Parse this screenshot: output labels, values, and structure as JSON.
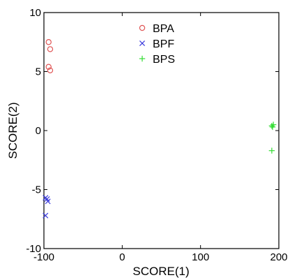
{
  "chart_data": {
    "type": "scatter",
    "xlabel": "SCORE(1)",
    "ylabel": "SCORE(2)",
    "xlim": [
      -100,
      200
    ],
    "ylim": [
      -10,
      10
    ],
    "xticks": [
      -100,
      0,
      100,
      200
    ],
    "yticks": [
      -10,
      -5,
      0,
      5,
      10
    ],
    "xtick_labels": [
      "-100",
      "0",
      "100",
      "200"
    ],
    "ytick_labels": [
      "-10",
      "-5",
      "0",
      "5",
      "10"
    ],
    "grid": false,
    "legend_position": "top-center",
    "series": [
      {
        "name": "BPA",
        "marker": "circle",
        "color": "#e05555",
        "points": [
          {
            "x": -94,
            "y": 7.5
          },
          {
            "x": -92,
            "y": 6.9
          },
          {
            "x": -94,
            "y": 5.4
          },
          {
            "x": -92,
            "y": 5.1
          }
        ]
      },
      {
        "name": "BPF",
        "marker": "x",
        "color": "#3b3bdc",
        "points": [
          {
            "x": -98,
            "y": -5.7
          },
          {
            "x": -96,
            "y": -5.8
          },
          {
            "x": -95,
            "y": -6.0
          },
          {
            "x": -98,
            "y": -7.2
          }
        ]
      },
      {
        "name": "BPS",
        "marker": "plus",
        "color": "#33dd33",
        "points": [
          {
            "x": 191,
            "y": 0.4
          },
          {
            "x": 193,
            "y": 0.5
          },
          {
            "x": 192,
            "y": 0.3
          },
          {
            "x": 191,
            "y": -1.7
          }
        ]
      }
    ]
  }
}
